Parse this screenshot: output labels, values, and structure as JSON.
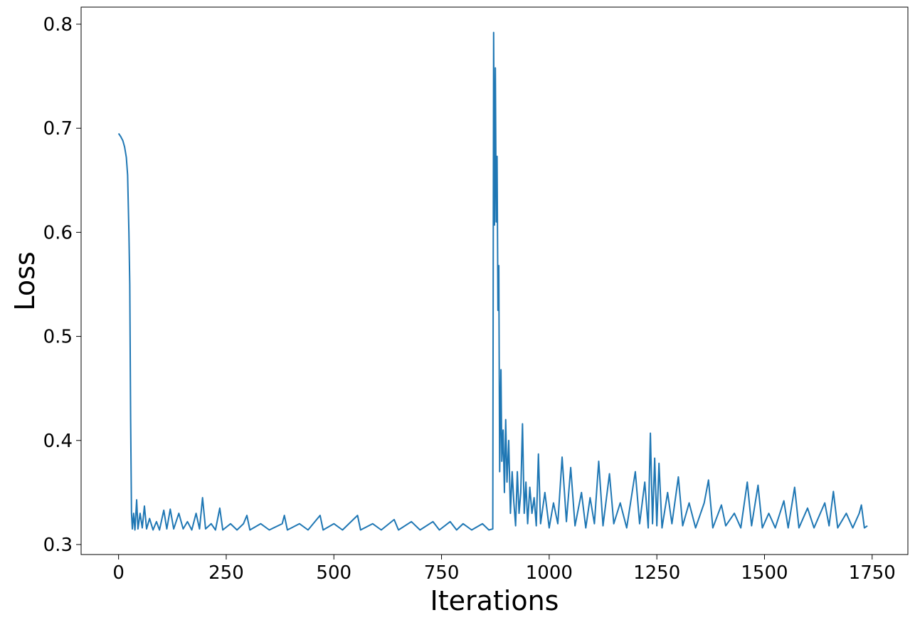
{
  "chart_data": {
    "type": "line",
    "xlabel": "Iterations",
    "ylabel": "Loss",
    "x": [
      0,
      5,
      10,
      14,
      18,
      21,
      24,
      26,
      28,
      30,
      32,
      35,
      38,
      42,
      45,
      50,
      55,
      60,
      65,
      72,
      80,
      88,
      95,
      105,
      112,
      120,
      128,
      140,
      150,
      160,
      170,
      180,
      188,
      195,
      202,
      215,
      225,
      235,
      242,
      260,
      275,
      290,
      298,
      305,
      330,
      350,
      380,
      385,
      392,
      420,
      440,
      468,
      475,
      500,
      520,
      555,
      562,
      590,
      610,
      640,
      650,
      680,
      700,
      730,
      745,
      770,
      785,
      800,
      820,
      845,
      860,
      869,
      871,
      873,
      875,
      877,
      879,
      881,
      883,
      885,
      888,
      890,
      893,
      896,
      899,
      902,
      906,
      910,
      914,
      918,
      922,
      926,
      930,
      934,
      938,
      942,
      946,
      950,
      955,
      960,
      965,
      970,
      975,
      980,
      990,
      1000,
      1010,
      1020,
      1030,
      1040,
      1050,
      1060,
      1075,
      1085,
      1095,
      1105,
      1115,
      1125,
      1140,
      1150,
      1165,
      1180,
      1200,
      1210,
      1222,
      1230,
      1235,
      1240,
      1245,
      1250,
      1255,
      1262,
      1275,
      1285,
      1300,
      1310,
      1325,
      1340,
      1360,
      1370,
      1380,
      1400,
      1410,
      1430,
      1445,
      1460,
      1470,
      1485,
      1495,
      1510,
      1525,
      1545,
      1555,
      1570,
      1580,
      1600,
      1615,
      1640,
      1650,
      1660,
      1670,
      1690,
      1705,
      1720,
      1725,
      1732,
      1739
    ],
    "series": [
      {
        "color": "#1f77b4",
        "values": [
          0.695,
          0.692,
          0.688,
          0.682,
          0.672,
          0.655,
          0.6,
          0.55,
          0.42,
          0.33,
          0.315,
          0.33,
          0.314,
          0.343,
          0.315,
          0.33,
          0.316,
          0.337,
          0.315,
          0.325,
          0.314,
          0.322,
          0.314,
          0.333,
          0.315,
          0.334,
          0.315,
          0.33,
          0.315,
          0.322,
          0.314,
          0.33,
          0.315,
          0.345,
          0.315,
          0.32,
          0.314,
          0.335,
          0.314,
          0.32,
          0.314,
          0.32,
          0.328,
          0.314,
          0.32,
          0.314,
          0.32,
          0.328,
          0.314,
          0.32,
          0.314,
          0.328,
          0.314,
          0.32,
          0.314,
          0.328,
          0.314,
          0.32,
          0.314,
          0.324,
          0.314,
          0.322,
          0.314,
          0.322,
          0.314,
          0.322,
          0.314,
          0.32,
          0.314,
          0.32,
          0.314,
          0.315,
          0.792,
          0.607,
          0.758,
          0.61,
          0.673,
          0.525,
          0.568,
          0.37,
          0.468,
          0.38,
          0.41,
          0.35,
          0.42,
          0.36,
          0.4,
          0.33,
          0.37,
          0.34,
          0.318,
          0.37,
          0.33,
          0.35,
          0.416,
          0.33,
          0.36,
          0.32,
          0.355,
          0.33,
          0.345,
          0.318,
          0.387,
          0.32,
          0.35,
          0.316,
          0.34,
          0.32,
          0.384,
          0.322,
          0.374,
          0.318,
          0.35,
          0.316,
          0.345,
          0.32,
          0.38,
          0.318,
          0.368,
          0.32,
          0.34,
          0.316,
          0.37,
          0.32,
          0.36,
          0.316,
          0.407,
          0.32,
          0.383,
          0.318,
          0.378,
          0.316,
          0.35,
          0.32,
          0.365,
          0.318,
          0.34,
          0.316,
          0.34,
          0.362,
          0.316,
          0.338,
          0.318,
          0.33,
          0.316,
          0.36,
          0.318,
          0.357,
          0.316,
          0.33,
          0.316,
          0.342,
          0.316,
          0.355,
          0.316,
          0.335,
          0.316,
          0.34,
          0.318,
          0.351,
          0.316,
          0.33,
          0.316,
          0.33,
          0.338,
          0.316,
          0.318
        ]
      }
    ],
    "xlim": [
      -87,
      1833
    ],
    "ylim": [
      0.2904,
      0.8164
    ],
    "xticks": [
      0,
      250,
      500,
      750,
      1000,
      1250,
      1500,
      1750
    ],
    "yticks": [
      0.3,
      0.4,
      0.5,
      0.6,
      0.7,
      0.8
    ]
  }
}
